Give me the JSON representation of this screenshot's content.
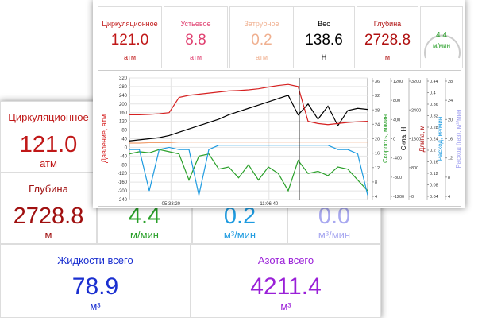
{
  "back_panel": {
    "tiles": [
      {
        "label": "Циркуляционное",
        "value": "121.0",
        "unit": "атм"
      },
      {
        "label": "Глубина",
        "value": "2728.8",
        "unit": "м"
      },
      {
        "value": "4.4",
        "unit": "м/мин"
      },
      {
        "value": "0.2",
        "unit": "м³/мин"
      },
      {
        "value": "0.0",
        "unit": "м³/мин"
      },
      {
        "label": "Жидкости всего",
        "value": "78.9",
        "unit": "м³"
      },
      {
        "label": "Азота всего",
        "value": "4211.4",
        "unit": "м³"
      }
    ]
  },
  "front_panel": {
    "tiles": [
      {
        "label": "Циркуляционное",
        "value": "121.0",
        "unit": "атм"
      },
      {
        "label": "Устьевое",
        "value": "8.8",
        "unit": "атм"
      },
      {
        "label": "Затрубное",
        "value": "0.2",
        "unit": "атм"
      },
      {
        "label": "Вес",
        "value": "138.6",
        "unit": "Н"
      },
      {
        "label": "Глубина",
        "value": "2728.8",
        "unit": "м"
      }
    ],
    "gauge": {
      "value": "4.4",
      "unit": "м/мин"
    }
  },
  "chart_data": {
    "type": "line",
    "y_label": "Давление, атм",
    "ylim": [
      -240,
      320
    ],
    "yticks": [
      320,
      280,
      240,
      200,
      160,
      120,
      80,
      40,
      0,
      -40,
      -80,
      -120,
      -160,
      -200,
      -240
    ],
    "xlim": [
      3.2,
      16.7
    ],
    "xticks": [
      {
        "value": 5.5556,
        "label": "05:33:20"
      },
      {
        "value": 11.1111,
        "label": "11:06:40"
      }
    ],
    "x": [
      3.2,
      3.7625,
      4.325,
      4.8875,
      5.45,
      6.0125,
      6.575,
      7.1375,
      7.7,
      8.2625,
      8.825,
      9.3875,
      9.95,
      10.5125,
      11.075,
      11.6375,
      12.2,
      12.7625,
      13.325,
      13.8875,
      14.45,
      15.0125,
      15.575,
      16.1375,
      16.7
    ],
    "series": [
      {
        "color": "#000000",
        "values": [
          30,
          35,
          40,
          45,
          55,
          70,
          85,
          100,
          115,
          130,
          150,
          165,
          180,
          195,
          210,
          225,
          240,
          150,
          200,
          130,
          190,
          100,
          170,
          180,
          175
        ]
      },
      {
        "color": "#d62020",
        "values": [
          150,
          150,
          152,
          155,
          160,
          230,
          240,
          245,
          250,
          255,
          260,
          262,
          265,
          270,
          278,
          285,
          290,
          280,
          120,
          110,
          105,
          110,
          115,
          118,
          120
        ]
      },
      {
        "color": "#2aa02a",
        "values": [
          -30,
          -20,
          -25,
          -10,
          -20,
          -30,
          -150,
          -40,
          -30,
          -100,
          -90,
          -140,
          -80,
          -150,
          -90,
          -120,
          -200,
          -60,
          -120,
          -110,
          -130,
          -90,
          -100,
          -150,
          -200
        ]
      },
      {
        "color": "#1e9be0",
        "values": [
          -10,
          -10,
          -200,
          -10,
          0,
          -10,
          -10,
          -220,
          -10,
          10,
          10,
          10,
          10,
          10,
          10,
          10,
          10,
          10,
          10,
          10,
          10,
          -10,
          -10,
          -30,
          -220
        ]
      },
      {
        "color": "#f0a070",
        "values": [
          20,
          20,
          22,
          22,
          22,
          25,
          25,
          25,
          25,
          25,
          25,
          25,
          25,
          25,
          25,
          25,
          25,
          25,
          25,
          25,
          25,
          25,
          25,
          25,
          25
        ]
      }
    ],
    "right_axes": [
      {
        "label": "Скорость, м/мин",
        "color": "#2aa02a",
        "ylim": [
          4,
          36
        ],
        "ticks": [
          36,
          32,
          28,
          24,
          20,
          16,
          12,
          8,
          4
        ]
      },
      {
        "label": "Сила, Н",
        "color": "#000000",
        "ylim": [
          -1200,
          1200
        ],
        "ticks": [
          1200,
          800,
          400,
          0,
          -400,
          -800,
          -1200
        ]
      },
      {
        "label": "Длина, м",
        "color": "#b01010",
        "ylim": [
          0,
          3200
        ],
        "ticks": [
          3200,
          2400,
          1600,
          800,
          0
        ]
      },
      {
        "label": "Расход, м³/мин",
        "color": "#1e9be0",
        "ylim": [
          0.04,
          0.44
        ],
        "ticks": [
          0.44,
          0.4,
          0.36,
          0.32,
          0.28,
          0.24,
          0.2,
          0.16,
          0.12,
          0.08,
          0.04
        ]
      },
      {
        "label": "Расход (газ), м³/мин",
        "color": "#a0a0f0",
        "ylim": [
          4,
          28
        ],
        "ticks": [
          28,
          24,
          20,
          16,
          12,
          8,
          4
        ]
      }
    ]
  }
}
